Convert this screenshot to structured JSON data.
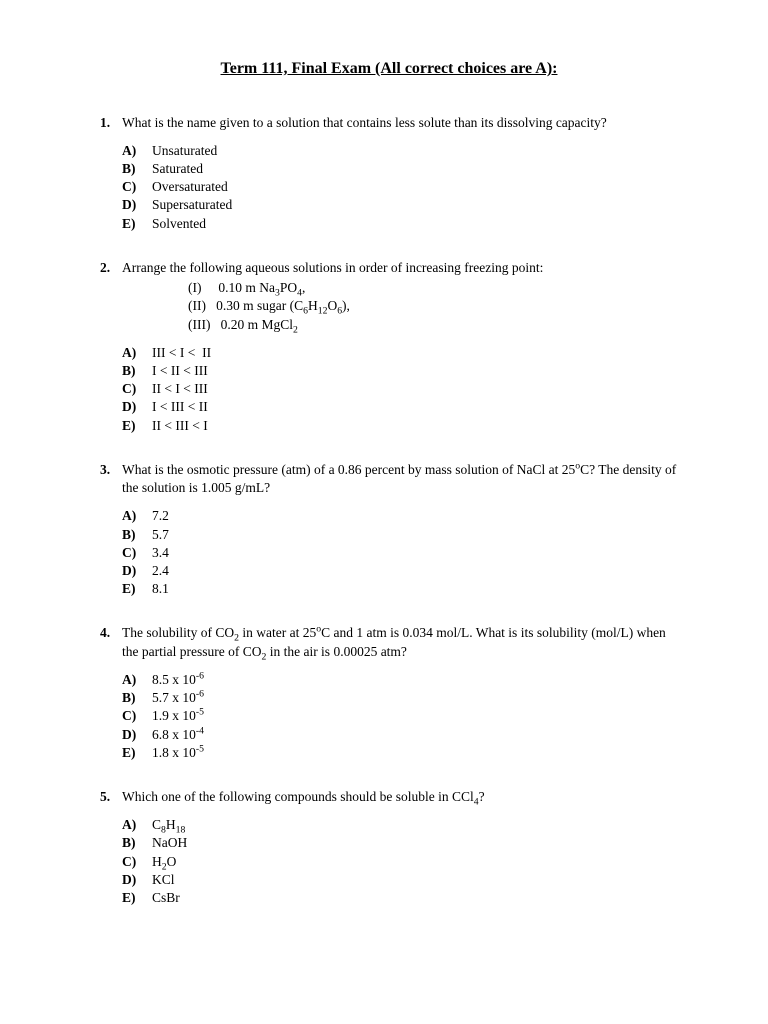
{
  "title": "Term 111, Final Exam (All correct choices are A):",
  "questions": [
    {
      "num": "1.",
      "text": "What is the name given to a solution that contains less solute than its dissolving capacity?",
      "sub": [],
      "choices": [
        {
          "label": "A)",
          "text": "Unsaturated"
        },
        {
          "label": "B)",
          "text": "Saturated"
        },
        {
          "label": "C)",
          "text": "Oversaturated"
        },
        {
          "label": "D)",
          "text": "Supersaturated"
        },
        {
          "label": "E)",
          "text": "Solvented"
        }
      ]
    },
    {
      "num": "2.",
      "text": "Arrange the following aqueous solutions in order of increasing freezing point:",
      "sub": [
        "(I)  0.10 m Na<sub>3</sub>PO<sub>4</sub>,",
        "(II)  0.30 m sugar (C<sub>6</sub>H<sub>12</sub>O<sub>6</sub>),",
        "(III)  0.20 m MgCl<sub>2</sub>"
      ],
      "choices": [
        {
          "label": "A)",
          "text": "III < I <  II"
        },
        {
          "label": "B)",
          "text": "I < II < III"
        },
        {
          "label": "C)",
          "text": "II < I < III"
        },
        {
          "label": "D)",
          "text": "I < III < II"
        },
        {
          "label": "E)",
          "text": "II < III < I"
        }
      ]
    },
    {
      "num": "3.",
      "text": "What is the osmotic pressure (atm) of a 0.86 percent by mass solution of NaCl at 25<sup>o</sup>C? The density of the solution is 1.005 g/mL?",
      "sub": [],
      "choices": [
        {
          "label": "A)",
          "text": "7.2"
        },
        {
          "label": "B)",
          "text": "5.7"
        },
        {
          "label": "C)",
          "text": "3.4"
        },
        {
          "label": "D)",
          "text": "2.4"
        },
        {
          "label": "E)",
          "text": "8.1"
        }
      ]
    },
    {
      "num": "4.",
      "text": "The solubility of CO<sub>2</sub> in water at 25<sup>o</sup>C and 1 atm is 0.034 mol/L. What is its solubility (mol/L) when the partial pressure of CO<sub>2</sub> in the air is 0.00025 atm?",
      "sub": [],
      "choices": [
        {
          "label": "A)",
          "text": "8.5 x 10<sup>-6</sup>"
        },
        {
          "label": "B)",
          "text": "5.7 x 10<sup>-6</sup>"
        },
        {
          "label": "C)",
          "text": "1.9 x 10<sup>-5</sup>"
        },
        {
          "label": "D)",
          "text": "6.8 x 10<sup>-4</sup>"
        },
        {
          "label": "E)",
          "text": "1.8 x 10<sup>-5</sup>"
        }
      ]
    },
    {
      "num": "5.",
      "text": "Which one of the following compounds should be soluble in CCl<sub>4</sub>?",
      "sub": [],
      "choices": [
        {
          "label": "A)",
          "text": "C<sub>8</sub>H<sub>18</sub>"
        },
        {
          "label": "B)",
          "text": "NaOH"
        },
        {
          "label": "C)",
          "text": "H<sub>2</sub>O"
        },
        {
          "label": "D)",
          "text": "KCl"
        },
        {
          "label": "E)",
          "text": "CsBr"
        }
      ]
    }
  ]
}
